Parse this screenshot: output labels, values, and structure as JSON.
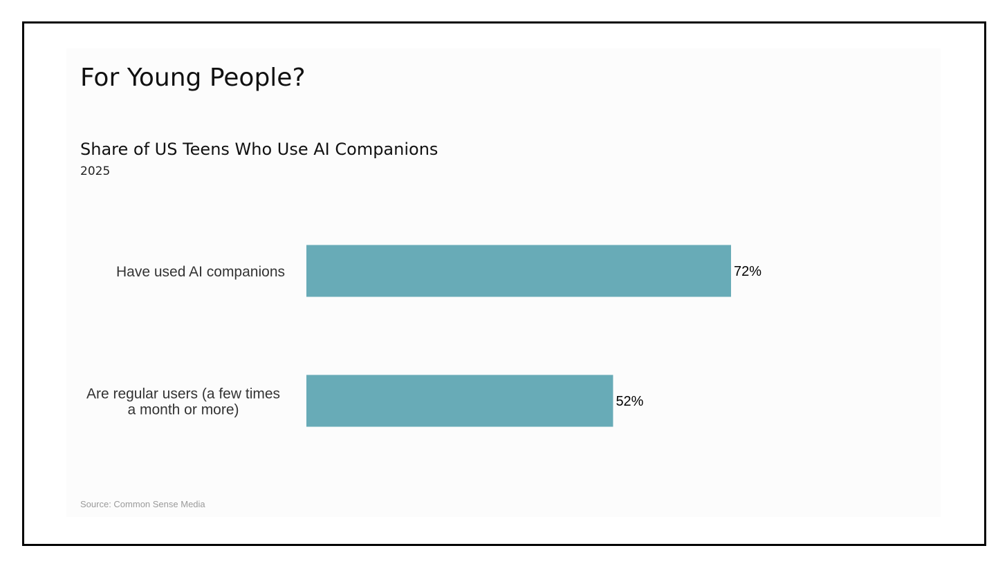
{
  "slide": {
    "title": "For Young People?",
    "source": "Source: Common Sense Media"
  },
  "chart_data": {
    "type": "bar",
    "orientation": "horizontal",
    "title": "Share of US Teens Who Use AI Companions",
    "subtitle": "2025",
    "categories": [
      [
        "Have used AI companions"
      ],
      [
        "Are regular users (a few times",
        "a month or more)"
      ]
    ],
    "values": [
      72,
      52
    ],
    "value_labels": [
      "72%",
      "52%"
    ],
    "unit": "%",
    "xlim": [
      0,
      100
    ],
    "grid": false,
    "legend": "none",
    "bar_color": "#68abb7"
  }
}
